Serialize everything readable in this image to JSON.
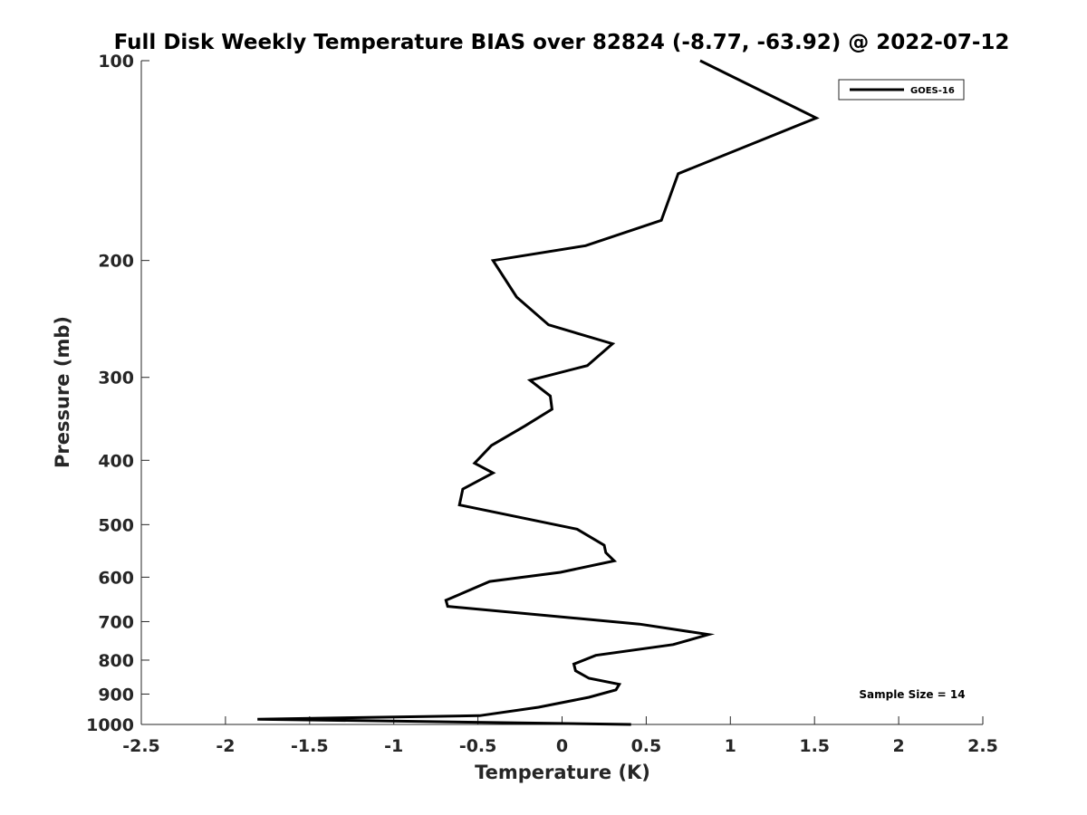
{
  "chart_data": {
    "type": "line",
    "title": "Full Disk Weekly Temperature BIAS over 82824 (-8.77, -63.92) @ 2022-07-12",
    "xlabel": "Temperature (K)",
    "ylabel": "Pressure (mb)",
    "xlim": [
      -2.5,
      2.5
    ],
    "ylim": [
      100,
      1000
    ],
    "y_scale": "log",
    "y_reversed": true,
    "xticks": [
      "-2.5",
      "-2",
      "-1.5",
      "-1",
      "-0.5",
      "0",
      "0.5",
      "1",
      "1.5",
      "2",
      "2.5"
    ],
    "yticks": [
      "100",
      "200",
      "300",
      "400",
      "500",
      "600",
      "700",
      "800",
      "900",
      "1000"
    ],
    "grid": false,
    "legend_position": "top-right",
    "annotation": "Sample Size = 14",
    "series": [
      {
        "name": "GOES-16",
        "color": "#000000",
        "x": [
          0.82,
          1.51,
          0.69,
          0.59,
          0.14,
          -0.41,
          -0.27,
          -0.08,
          0.3,
          0.15,
          -0.19,
          -0.07,
          -0.06,
          -0.22,
          -0.42,
          -0.52,
          -0.41,
          -0.59,
          -0.61,
          0.09,
          0.25,
          0.26,
          0.31,
          -0.01,
          -0.43,
          -0.69,
          -0.68,
          0.46,
          0.87,
          0.66,
          0.2,
          0.07,
          0.08,
          0.16,
          0.34,
          0.32,
          0.16,
          -0.14,
          -0.49,
          -1.81,
          0.41
        ],
        "y": [
          100,
          122,
          148,
          174,
          190,
          200,
          227,
          250,
          267,
          288,
          303,
          320,
          335,
          355,
          380,
          404,
          418,
          442,
          467,
          508,
          537,
          551,
          567,
          590,
          609,
          650,
          664,
          706,
          732,
          758,
          787,
          811,
          830,
          852,
          870,
          887,
          910,
          942,
          970,
          982,
          1000
        ]
      }
    ]
  }
}
